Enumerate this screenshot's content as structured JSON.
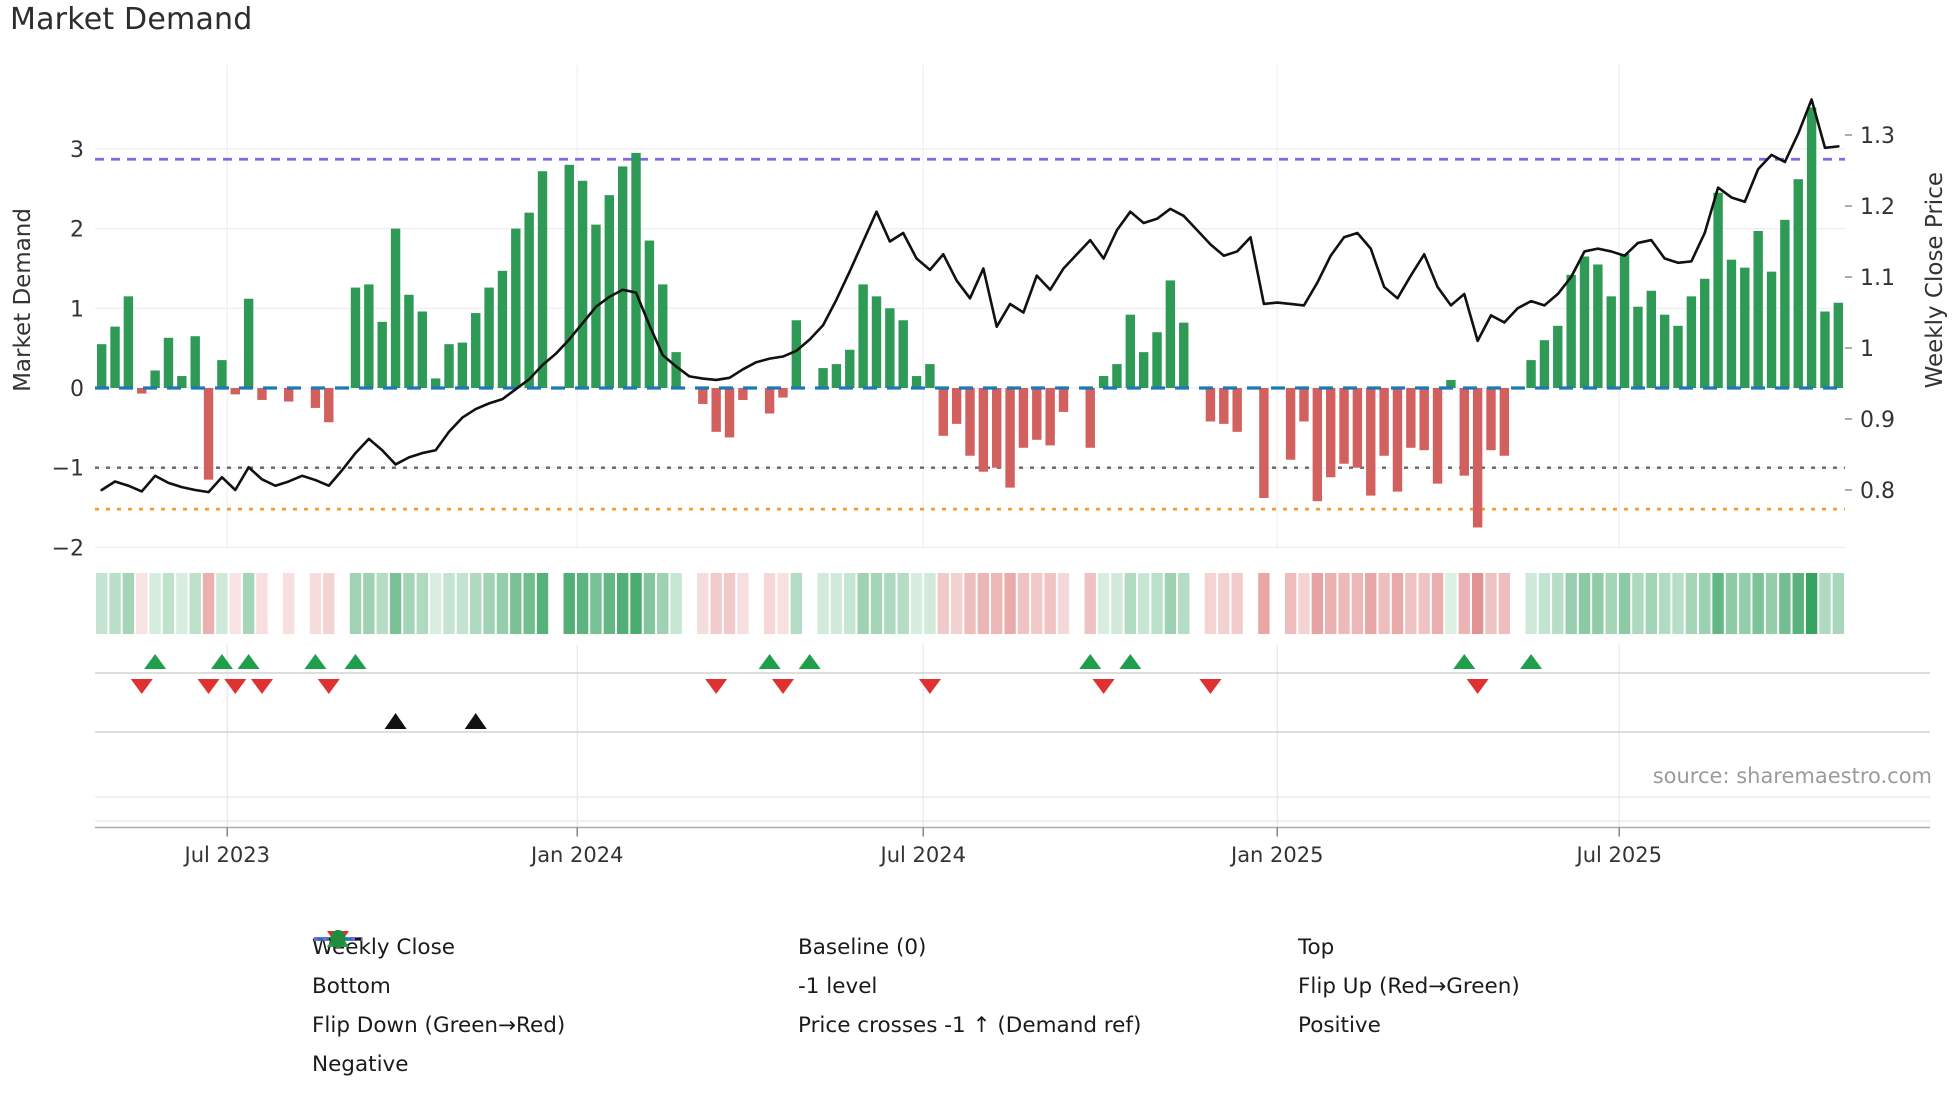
{
  "title": "Market Demand",
  "source": "source: sharemaestro.com",
  "axes": {
    "left_title": "Market Demand",
    "right_title": "Weekly Close Price",
    "left_ticks": [
      "3",
      "2",
      "1",
      "0",
      "−1",
      "−2"
    ],
    "left_tick_values": [
      3,
      2,
      1,
      0,
      -1,
      -2
    ],
    "right_ticks": [
      "1.3",
      "1.2",
      "1.1",
      "1",
      "0.9",
      "0.8"
    ],
    "right_tick_values": [
      1.3,
      1.2,
      1.1,
      1,
      0.9,
      0.8
    ],
    "x_ticks": [
      {
        "label": "Jul 2023",
        "i": 9.4
      },
      {
        "label": "Jan 2024",
        "i": 35.6
      },
      {
        "label": "Jul 2024",
        "i": 61.5
      },
      {
        "label": "Jan 2025",
        "i": 88.0
      },
      {
        "label": "Jul 2025",
        "i": 113.6
      }
    ]
  },
  "chart_data": {
    "type": "bar+line",
    "x_unit": "week",
    "demand_series_name": "Market Demand",
    "price_series_name": "Weekly Close",
    "demand": [
      0.55,
      0.77,
      1.15,
      -0.07,
      0.22,
      0.63,
      0.15,
      0.65,
      -1.15,
      0.35,
      -0.08,
      1.12,
      -0.15,
      -0.03,
      -0.17,
      -0.05,
      -0.25,
      -0.43,
      0.02,
      1.26,
      1.3,
      0.83,
      2.0,
      1.17,
      0.96,
      0.12,
      0.55,
      0.57,
      0.94,
      1.26,
      1.47,
      2.0,
      2.2,
      2.72,
      0.03,
      2.8,
      2.6,
      2.05,
      2.42,
      2.78,
      2.95,
      1.85,
      1.3,
      0.45,
      0.02,
      -0.2,
      -0.55,
      -0.62,
      -0.15,
      0.03,
      -0.32,
      -0.12,
      0.85,
      0.02,
      0.25,
      0.3,
      0.48,
      1.3,
      1.15,
      1.0,
      0.85,
      0.15,
      0.3,
      -0.6,
      -0.45,
      -0.85,
      -1.05,
      -1.0,
      -1.25,
      -0.75,
      -0.65,
      -0.72,
      -0.3,
      0.02,
      -0.75,
      0.15,
      0.3,
      0.92,
      0.45,
      0.7,
      1.35,
      0.82,
      -0.05,
      -0.42,
      -0.45,
      -0.55,
      0.02,
      -1.38,
      0.03,
      -0.9,
      -0.42,
      -1.42,
      -1.12,
      -0.95,
      -1.0,
      -1.35,
      -0.85,
      -1.3,
      -0.75,
      -0.78,
      -1.2,
      0.1,
      -1.1,
      -1.75,
      -0.78,
      -0.85,
      0.02,
      0.35,
      0.6,
      0.78,
      1.42,
      1.65,
      1.55,
      1.15,
      1.68,
      1.02,
      1.22,
      0.92,
      0.78,
      1.15,
      1.37,
      2.45,
      1.61,
      1.51,
      1.97,
      1.46,
      2.11,
      2.62,
      3.52,
      0.96,
      1.07
    ],
    "price": [
      0.8,
      0.812,
      0.806,
      0.798,
      0.82,
      0.81,
      0.804,
      0.8,
      0.797,
      0.818,
      0.8,
      0.832,
      0.815,
      0.806,
      0.812,
      0.82,
      0.814,
      0.806,
      0.828,
      0.852,
      0.872,
      0.856,
      0.836,
      0.846,
      0.852,
      0.856,
      0.882,
      0.902,
      0.914,
      0.922,
      0.928,
      0.942,
      0.956,
      0.976,
      0.992,
      1.012,
      1.035,
      1.058,
      1.072,
      1.082,
      1.078,
      1.032,
      0.99,
      0.974,
      0.96,
      0.957,
      0.955,
      0.958,
      0.97,
      0.98,
      0.985,
      0.988,
      0.996,
      1.012,
      1.032,
      1.068,
      1.108,
      1.15,
      1.192,
      1.15,
      1.162,
      1.126,
      1.11,
      1.132,
      1.095,
      1.07,
      1.112,
      1.03,
      1.062,
      1.05,
      1.102,
      1.082,
      1.112,
      1.132,
      1.152,
      1.126,
      1.166,
      1.192,
      1.176,
      1.182,
      1.196,
      1.186,
      1.166,
      1.146,
      1.13,
      1.136,
      1.156,
      1.062,
      1.064,
      1.062,
      1.06,
      1.092,
      1.13,
      1.156,
      1.162,
      1.14,
      1.086,
      1.07,
      1.102,
      1.132,
      1.086,
      1.06,
      1.076,
      1.01,
      1.046,
      1.036,
      1.056,
      1.066,
      1.06,
      1.076,
      1.1,
      1.136,
      1.14,
      1.136,
      1.13,
      1.148,
      1.152,
      1.126,
      1.12,
      1.122,
      1.162,
      1.226,
      1.212,
      1.206,
      1.252,
      1.272,
      1.262,
      1.302,
      1.35,
      1.282,
      1.284
    ],
    "reference_lines": {
      "top": 2.87,
      "baseline": 0,
      "minus1": -1,
      "bottom": -1.52
    },
    "markers": {
      "flip_up_weeks": [
        4,
        9,
        11,
        16,
        19,
        50,
        53,
        74,
        77,
        102,
        107
      ],
      "flip_down_weeks": [
        3,
        8,
        10,
        12,
        17,
        46,
        51,
        62,
        75,
        83,
        103
      ],
      "price_cross_weeks": [
        22,
        28
      ]
    },
    "ylim_demand": [
      -2.05,
      4.05
    ],
    "ylim_price": [
      0.718,
      1.398
    ],
    "heat_strip": "derived-from-demand-sign-and-magnitude"
  },
  "legend": {
    "columns": [
      [
        {
          "label": "Weekly Close",
          "swatch": "line",
          "color": "#111111"
        },
        {
          "label": "Bottom",
          "swatch": "dots",
          "color": "#f39b2d"
        },
        {
          "label": "Flip Down (Green→Red)",
          "swatch": "tri-down",
          "color": "#e03131"
        },
        {
          "label": "Negative",
          "swatch": "circle",
          "color": "#b02525"
        }
      ],
      [
        {
          "label": "Baseline (0)",
          "swatch": "dashes",
          "color": "#1f77b4"
        },
        {
          "label": "-1 level",
          "swatch": "dots",
          "color": "#666666"
        },
        {
          "label": "Price crosses -1 ↑ (Demand ref)",
          "swatch": "tri-up",
          "color": "#111111"
        }
      ],
      [
        {
          "label": "Top",
          "swatch": "dots",
          "color": "#7b68ee"
        },
        {
          "label": "Flip Up (Red→Green)",
          "swatch": "tri-up",
          "color": "#1f9e4b"
        },
        {
          "label": "Positive",
          "swatch": "circle",
          "color": "#1e8e3e"
        }
      ]
    ]
  },
  "colors": {
    "bar_positive": "#2e9a56",
    "bar_negative": "#d2605e",
    "price_line": "#111111",
    "baseline": "#1f77b4",
    "top_line": "#7b68ee",
    "bottom_line": "#f39b2d",
    "minus1_line": "#666666",
    "flip_up": "#1f9e4b",
    "flip_down": "#e03131",
    "price_cross": "#111111",
    "heat_green_rgb": "44,158,89",
    "heat_red_rgb": "214,96,96",
    "grid": "#ededf2",
    "axis_text": "#333333"
  }
}
